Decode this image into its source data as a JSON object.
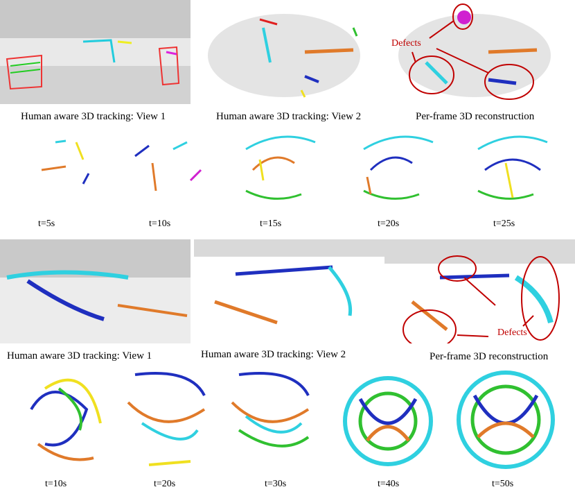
{
  "top": {
    "captions": [
      "Human aware 3D tracking: View 1",
      "Human aware 3D tracking: View 2",
      "Per-frame 3D reconstruction"
    ],
    "defects_label": "Defects",
    "times": [
      "t=5s",
      "t=10s",
      "t=15s",
      "t=20s",
      "t=25s"
    ]
  },
  "bottom": {
    "captions": [
      "Human aware 3D tracking: View 1",
      "Human aware 3D tracking: View 2",
      "Per-frame 3D reconstruction"
    ],
    "defects_label": "Defects",
    "times": [
      "t=10s",
      "t=20s",
      "t=30s",
      "t=40s",
      "t=50s"
    ]
  },
  "colors": {
    "annotation": "#c00000",
    "tracks": [
      "#1f2fbf",
      "#2fd0e0",
      "#f0e020",
      "#e07a2a",
      "#30c030",
      "#d020d0",
      "#e02020"
    ]
  }
}
